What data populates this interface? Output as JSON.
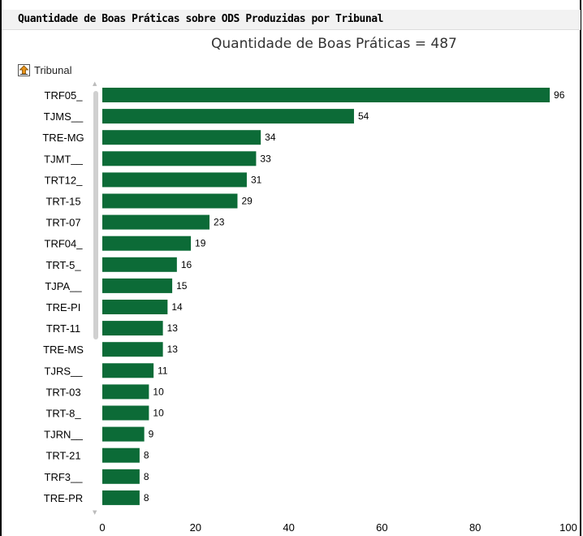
{
  "header": {
    "title": "Quantidade de Boas Práticas sobre ODS Produzidas por Tribunal"
  },
  "subtitle": "Quantidade de Boas Práticas = 487",
  "drill": {
    "label": "Tribunal",
    "icon": "drill-up-arrow-icon"
  },
  "colors": {
    "bar": "#0c6b37",
    "header_bg": "#f2f2f2"
  },
  "chart_data": {
    "type": "bar",
    "orientation": "horizontal",
    "categories": [
      "TRF05_",
      "TJMS__",
      "TRE-MG",
      "TJMT__",
      "TRT12_",
      "TRT-15",
      "TRT-07",
      "TRF04_",
      "TRT-5_",
      "TJPA__",
      "TRE-PI",
      "TRT-11",
      "TRE-MS",
      "TJRS__",
      "TRT-03",
      "TRT-8_",
      "TJRN__",
      "TRT-21",
      "TRF3__",
      "TRE-PR"
    ],
    "values": [
      96,
      54,
      34,
      33,
      31,
      29,
      23,
      19,
      16,
      15,
      14,
      13,
      13,
      11,
      10,
      10,
      9,
      8,
      8,
      8
    ],
    "xlim": [
      0,
      100
    ],
    "xticks": [
      0,
      20,
      40,
      60,
      80,
      100
    ],
    "grid": false,
    "legend": "none"
  }
}
